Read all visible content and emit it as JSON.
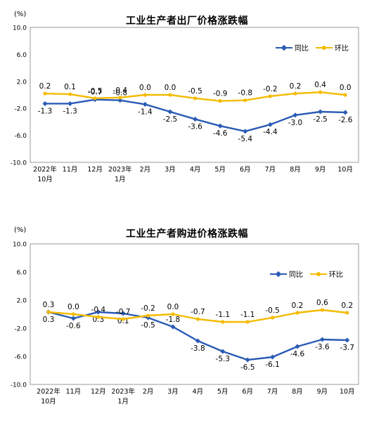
{
  "colors": {
    "yoy": "#2a5bb5",
    "mom": "#f4bb00",
    "grid": "#999999",
    "frame": "#999999"
  },
  "chart_data": [
    {
      "type": "line",
      "title": "工业生产者出厂价格涨跌幅",
      "unit": "(%)",
      "categories": [
        [
          "2022年",
          "10月"
        ],
        [
          "11月"
        ],
        [
          "12月"
        ],
        [
          "2023年",
          "1月"
        ],
        [
          "2月"
        ],
        [
          "3月"
        ],
        [
          "4月"
        ],
        [
          "5月"
        ],
        [
          "6月"
        ],
        [
          "7月"
        ],
        [
          "8月"
        ],
        [
          "9月"
        ],
        [
          "10月"
        ]
      ],
      "ylim": [
        -10,
        10
      ],
      "yticks": [
        "10.0",
        "6.0",
        "2.0",
        "-2.0",
        "-6.0",
        "-10.0"
      ],
      "ytick_values": [
        10,
        6,
        2,
        -2,
        -6,
        -10
      ],
      "grid": false,
      "legend_position": "top-right",
      "series": [
        {
          "name": "同比",
          "key": "yoy",
          "values": [
            -1.3,
            -1.3,
            -0.7,
            -0.8,
            -1.4,
            -2.5,
            -3.6,
            -4.6,
            -5.4,
            -4.4,
            -3.0,
            -2.5,
            -2.6
          ],
          "labels": [
            "-1.3",
            "-1.3",
            "-0.7",
            "-0.8",
            "-1.4",
            "-2.5",
            "-3.6",
            "-4.6",
            "-5.4",
            "-4.4",
            "-3.0",
            "-2.5",
            "-2.6"
          ]
        },
        {
          "name": "环比",
          "key": "mom",
          "values": [
            0.2,
            0.1,
            -0.5,
            -0.4,
            0.0,
            0.0,
            -0.5,
            -0.9,
            -0.8,
            -0.2,
            0.2,
            0.4,
            0.0
          ],
          "labels": [
            "0.2",
            "0.1",
            "-0.5",
            "-0.4",
            "0.0",
            "0.0",
            "-0.5",
            "-0.9",
            "-0.8",
            "-0.2",
            "0.2",
            "0.4",
            "0.0"
          ]
        }
      ]
    },
    {
      "type": "line",
      "title": "工业生产者购进价格涨跌幅",
      "unit": "(%)",
      "categories": [
        [
          "2022年",
          "10月"
        ],
        [
          "11月"
        ],
        [
          "12月"
        ],
        [
          "2023年",
          "1月"
        ],
        [
          "2月"
        ],
        [
          "3月"
        ],
        [
          "4月"
        ],
        [
          "5月"
        ],
        [
          "6月"
        ],
        [
          "7月"
        ],
        [
          "8月"
        ],
        [
          "9月"
        ],
        [
          "10月"
        ]
      ],
      "ylim": [
        -10,
        10
      ],
      "yticks": [
        "10.0",
        "6.0",
        "2.0",
        "-2.0",
        "-6.0",
        "-10.0"
      ],
      "ytick_values": [
        10,
        6,
        2,
        -2,
        -6,
        -10
      ],
      "grid": false,
      "legend_position": "top-right",
      "series": [
        {
          "name": "同比",
          "key": "yoy",
          "values": [
            0.3,
            -0.6,
            0.3,
            0.1,
            -0.5,
            -1.8,
            -3.8,
            -5.3,
            -6.5,
            -6.1,
            -4.6,
            -3.6,
            -3.7
          ],
          "labels": [
            "0.3",
            "-0.6",
            "0.3",
            "0.1",
            "-0.5",
            "-1.8",
            "-3.8",
            "-5.3",
            "-6.5",
            "-6.1",
            "-4.6",
            "-3.6",
            "-3.7"
          ]
        },
        {
          "name": "环比",
          "key": "mom",
          "values": [
            0.3,
            0.0,
            -0.4,
            -0.7,
            -0.2,
            0.0,
            -0.7,
            -1.1,
            -1.1,
            -0.5,
            0.2,
            0.6,
            0.2
          ],
          "labels": [
            "0.3",
            "0.0",
            "-0.4",
            "-0.7",
            "-0.2",
            "0.0",
            "-0.7",
            "-1.1",
            "-1.1",
            "-0.5",
            "0.2",
            "0.6",
            "0.2"
          ]
        }
      ]
    }
  ]
}
